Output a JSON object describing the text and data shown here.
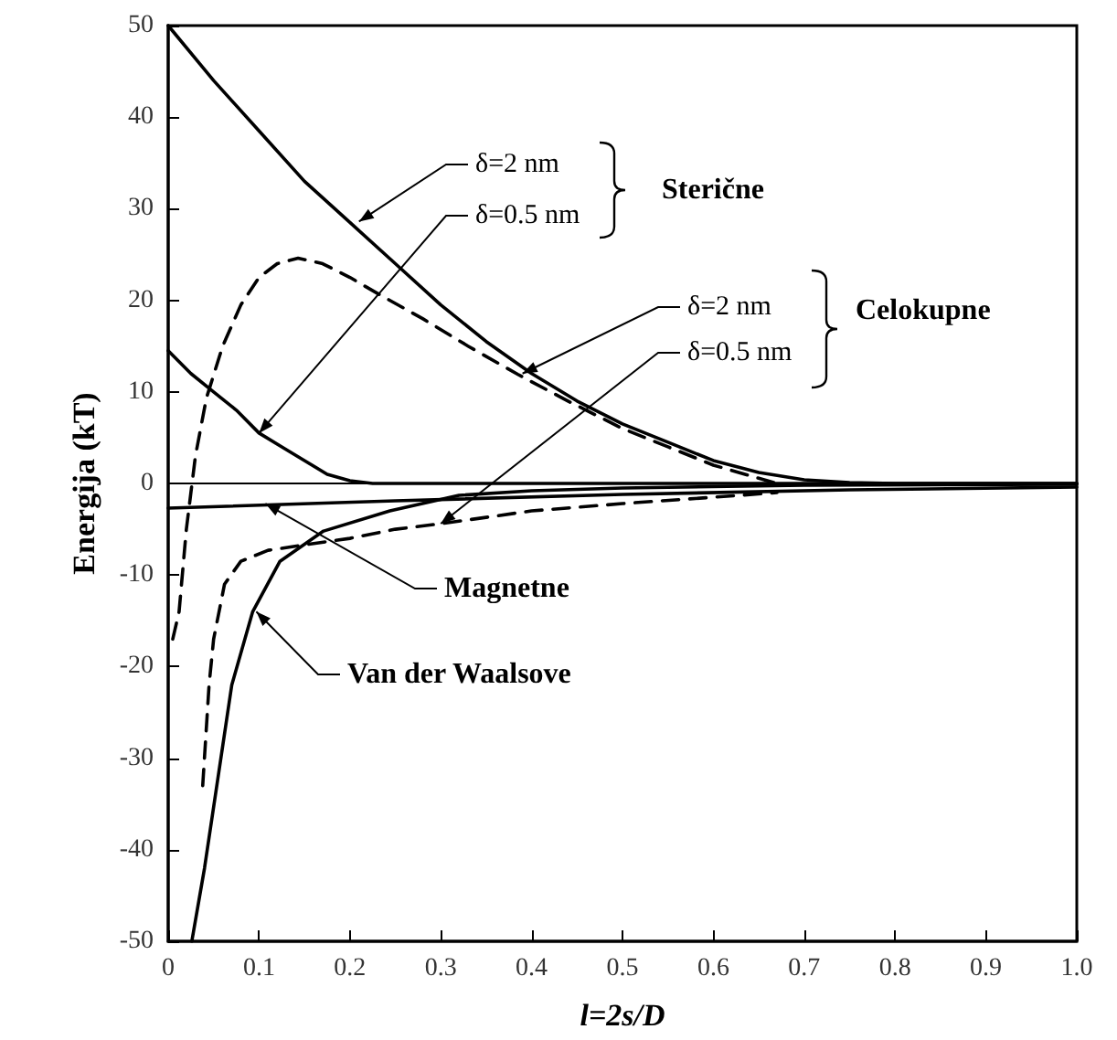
{
  "chart_data": {
    "type": "line",
    "xlabel": "l=2s/D",
    "ylabel": "Energija (kT)",
    "xlim": [
      0,
      1
    ],
    "xticks": [
      0,
      0.1,
      0.2,
      0.3,
      0.4,
      0.5,
      0.6,
      0.7,
      0.8,
      0.9,
      {
        "value": 1,
        "label": "1.0"
      }
    ],
    "ylim": [
      -50,
      50
    ],
    "yticks": [
      -50,
      -40,
      -30,
      -20,
      -10,
      0,
      10,
      20,
      30,
      40,
      50
    ],
    "grid": false,
    "marker": "none",
    "ref_lines": [
      {
        "axis": "y",
        "value": 0,
        "label": null,
        "color": "#000000"
      }
    ],
    "series": [
      {
        "color": "#000000",
        "line_style": "solid",
        "x": [
          0,
          0.05,
          0.1,
          0.15,
          0.2,
          0.25,
          0.3,
          0.35,
          0.4,
          0.45,
          0.5,
          0.55,
          0.6,
          0.65,
          0.7,
          0.75,
          0.8,
          0.9,
          1
        ],
        "values": [
          50,
          44,
          38.5,
          33,
          28.5,
          24,
          19.5,
          15.5,
          12,
          9,
          6.5,
          4.5,
          2.5,
          1.2,
          0.4,
          0.1,
          0,
          0,
          0
        ]
      },
      {
        "color": "#000000",
        "line_style": "solid",
        "x": [
          0,
          0.025,
          0.05,
          0.075,
          0.1,
          0.125,
          0.15,
          0.175,
          0.2,
          0.225,
          0.5,
          1
        ],
        "values": [
          14.5,
          12,
          10,
          8,
          5.5,
          4,
          2.5,
          1,
          0.3,
          0,
          0,
          0
        ]
      },
      {
        "color": "#000000",
        "line_style": "dashed",
        "x": [
          0.005,
          0.012,
          0.02,
          0.03,
          0.042,
          0.06,
          0.08,
          0.1,
          0.12,
          0.143,
          0.17,
          0.2,
          0.233,
          0.28,
          0.33,
          0.385,
          0.44,
          0.5,
          0.55,
          0.6,
          0.67
        ],
        "values": [
          -17,
          -14,
          -5,
          3,
          9.3,
          15,
          19.5,
          22.5,
          24,
          24.6,
          24,
          22.5,
          20.6,
          18,
          15,
          11.9,
          9,
          6,
          4,
          2,
          0
        ]
      },
      {
        "color": "#000000",
        "line_style": "dashed",
        "x": [
          0.038,
          0.045,
          0.05,
          0.062,
          0.08,
          0.11,
          0.15,
          0.2,
          0.25,
          0.3,
          0.4,
          0.5,
          0.6,
          0.67
        ],
        "values": [
          -33,
          -22,
          -17,
          -11,
          -8.5,
          -7.3,
          -6.7,
          -6,
          -5,
          -4.4,
          -3,
          -2.2,
          -1.5,
          -1
        ]
      },
      {
        "color": "#000000",
        "line_style": "solid",
        "x": [
          0,
          0.25,
          0.5,
          0.75,
          1
        ],
        "values": [
          -2.7,
          -1.9,
          -1.2,
          -0.7,
          -0.4
        ]
      },
      {
        "color": "#000000",
        "line_style": "solid",
        "x": [
          0.026,
          0.04,
          0.052,
          0.07,
          0.093,
          0.123,
          0.171,
          0.244,
          0.32,
          0.4,
          0.5,
          0.7,
          1
        ],
        "values": [
          -50,
          -42,
          -34,
          -22,
          -14,
          -8.5,
          -5.2,
          -3,
          -1.3,
          -0.8,
          -0.5,
          -0.2,
          -0.1
        ]
      }
    ],
    "annotations": [
      {
        "text": "δ=2 nm",
        "x": 0.21,
        "y": 28.6
      },
      {
        "text": "δ=0.5 nm",
        "x": 0.1,
        "y": 5.5
      },
      "Sterične",
      {
        "text": "δ=2 nm",
        "x": 0.39,
        "y": 12
      },
      {
        "text": "δ=0.5 nm",
        "x": 0.3,
        "y": -4.4
      },
      "Celokupne",
      {
        "text": "Magnetne",
        "x": 0.107,
        "y": -2.2
      },
      {
        "text": "Van der Waalsove",
        "x": 0.097,
        "y": -14
      }
    ]
  }
}
